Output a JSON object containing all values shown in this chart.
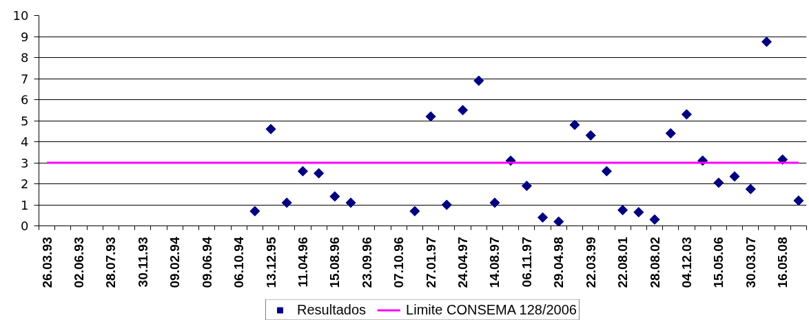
{
  "chart_data": {
    "type": "scatter",
    "categories": [
      "26.03.93",
      null,
      "02.06.93",
      null,
      "28.07.93",
      null,
      "30.11.93",
      null,
      "09.02.94",
      null,
      "09.06.94",
      null,
      "06.10.94",
      null,
      "13.12.95",
      null,
      "11.04.96",
      null,
      "15.08.96",
      null,
      "23.09.96",
      null,
      "07.10.96",
      null,
      "27.01.97",
      null,
      "24.04.97",
      null,
      "14.08.97",
      null,
      "06.11.97",
      null,
      "29.04.98",
      null,
      "22.03.99",
      null,
      "22.08.01",
      null,
      "28.08.02",
      null,
      "04.12.03",
      null,
      "15.05.06",
      null,
      "30.03.07",
      null,
      "16.05.08",
      null
    ],
    "ylim": [
      0,
      10
    ],
    "yticks": [
      0,
      1,
      2,
      3,
      4,
      5,
      6,
      7,
      8,
      9,
      10
    ],
    "grid": "y",
    "legend": "bottom",
    "series": [
      {
        "name": "Resultados",
        "color": "#000080",
        "marker": "diamond",
        "values": [
          null,
          null,
          null,
          null,
          null,
          null,
          null,
          null,
          null,
          null,
          null,
          null,
          null,
          0.7,
          4.6,
          1.1,
          2.6,
          2.5,
          1.4,
          1.1,
          null,
          null,
          null,
          0.7,
          5.2,
          1.0,
          5.5,
          6.9,
          1.1,
          3.1,
          1.9,
          0.4,
          0.2,
          4.8,
          4.3,
          2.6,
          0.75,
          0.65,
          0.3,
          4.4,
          5.3,
          3.1,
          2.05,
          2.35,
          1.75,
          8.75,
          3.15,
          1.2
        ]
      },
      {
        "name": "Limite CONSEMA 128/2006",
        "type": "line",
        "color": "#ff00ff",
        "line_style": "solid",
        "values": [
          3,
          3,
          3,
          3,
          3,
          3,
          3,
          3,
          3,
          3,
          3,
          3,
          3,
          3,
          3,
          3,
          3,
          3,
          3,
          3,
          3,
          3,
          3,
          3,
          3,
          3,
          3,
          3,
          3,
          3,
          3,
          3,
          3,
          3,
          3,
          3,
          3,
          3,
          3,
          3,
          3,
          3,
          3,
          3,
          3,
          3,
          3,
          3
        ]
      }
    ]
  }
}
